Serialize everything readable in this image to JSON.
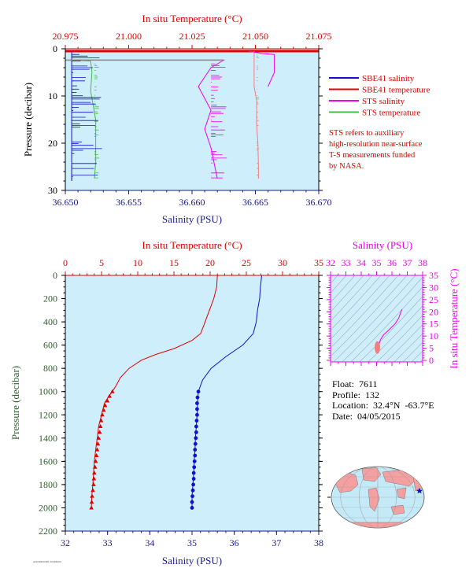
{
  "colors": {
    "red": "#e00000",
    "blue": "#1010cc",
    "magenta": "#ee00ee",
    "green": "#44bb44",
    "pink": "#f08080",
    "navy": "#1a1a8c",
    "darkgreen": "#2e5e2e",
    "panel": "#cdeefa",
    "land": "#f4a0a0",
    "ocean": "#c4eaf8"
  },
  "legend": {
    "items": [
      {
        "label": "SBE41 salinity",
        "color": "#1010cc"
      },
      {
        "label": "SBE41 temperature",
        "color": "#e00000"
      },
      {
        "label": "STS salinity",
        "color": "#ee00ee"
      },
      {
        "label": "STS temperature",
        "color": "#44bb44"
      }
    ],
    "note_lines": [
      "STS refers to auxiliary",
      "high-resolution near-surface",
      "T-S measurements funded",
      "by NASA."
    ]
  },
  "info": {
    "float": "Float:  7611",
    "profile": "Profile:  132",
    "location": "Location:  32.4°N  -63.7°E",
    "date": "Date:  04/05/2015"
  },
  "stamp": "A0000000000 00000000",
  "chart_data": [
    {
      "id": "near-surface",
      "type": "line",
      "top_axis_label": "In situ Temperature (°C)",
      "top_ticks": [
        "20.975",
        "21.000",
        "21.025",
        "21.050",
        "21.075"
      ],
      "top_range": [
        20.975,
        21.075
      ],
      "bottom_axis_label": "Salinity (PSU)",
      "bottom_ticks": [
        "36.650",
        "36.655",
        "36.660",
        "36.665",
        "36.670"
      ],
      "bottom_range": [
        36.65,
        36.67
      ],
      "ylabel": "Pressure (decibar)",
      "y_ticks": [
        "0",
        "10",
        "20",
        "30"
      ],
      "ylim": [
        0,
        30
      ],
      "series": [
        {
          "name": "SBE41 salinity",
          "color": "#1010cc",
          "x_axis": "bottom",
          "points": [
            [
              36.6505,
              0.5
            ],
            [
              36.6505,
              28
            ]
          ]
        },
        {
          "name": "SBE41 temperature",
          "color": "#e00000",
          "x_axis": "top",
          "points": [
            [
              20.975,
              0.5
            ],
            [
              21.075,
              0.5
            ]
          ]
        },
        {
          "name": "STS salinity",
          "color": "#ee00ee",
          "x_axis": "bottom",
          "points": [
            [
              36.6505,
              2.4
            ],
            [
              36.6625,
              2.4
            ],
            [
              36.6615,
              4
            ],
            [
              36.6605,
              8
            ],
            [
              36.6615,
              13
            ],
            [
              36.661,
              17
            ],
            [
              36.6615,
              21
            ],
            [
              36.6618,
              25
            ],
            [
              36.662,
              27.5
            ]
          ]
        },
        {
          "name": "STS temperature",
          "color": "#44bb44",
          "x_axis": "top",
          "points": [
            [
              20.975,
              2.4
            ],
            [
              20.985,
              2.6
            ],
            [
              20.9855,
              5
            ],
            [
              20.985,
              9
            ],
            [
              20.986,
              12
            ],
            [
              20.987,
              15
            ],
            [
              20.987,
              20
            ],
            [
              20.987,
              24
            ],
            [
              20.9865,
              27.5
            ]
          ]
        },
        {
          "name": "STS temperature (upper)",
          "color": "#f08080",
          "x_axis": "top",
          "points": [
            [
              21.0495,
              0.5
            ],
            [
              21.0495,
              8
            ],
            [
              21.0505,
              11
            ],
            [
              21.0505,
              16
            ],
            [
              21.051,
              20
            ],
            [
              21.0512,
              25
            ],
            [
              21.0512,
              27.5
            ]
          ]
        },
        {
          "name": "STS salinity (upper)",
          "color": "#ee00ee",
          "x_axis": "bottom",
          "points": [
            [
              36.6645,
              0.5
            ],
            [
              36.6655,
              1
            ],
            [
              36.6665,
              1.2
            ],
            [
              36.6665,
              5
            ],
            [
              36.666,
              8
            ]
          ]
        }
      ]
    },
    {
      "id": "full-profile",
      "type": "line",
      "top_axis_label": "In situ Temperature (°C)",
      "top_ticks": [
        "0",
        "5",
        "10",
        "15",
        "20",
        "25",
        "30",
        "35"
      ],
      "top_range": [
        0,
        35
      ],
      "bottom_axis_label": "Salinity (PSU)",
      "bottom_ticks": [
        "32",
        "33",
        "34",
        "35",
        "36",
        "37",
        "38"
      ],
      "bottom_range": [
        32,
        38
      ],
      "ylabel": "Pressure (decibar)",
      "y_ticks": [
        "0",
        "200",
        "400",
        "600",
        "800",
        "1000",
        "1200",
        "1400",
        "1600",
        "1800",
        "2000",
        "2200"
      ],
      "ylim": [
        0,
        2200
      ],
      "series": [
        {
          "name": "Temperature",
          "color": "#e00000",
          "x_axis": "top",
          "marker": "triangle",
          "points": [
            [
              21.0,
              0
            ],
            [
              20.9,
              100
            ],
            [
              20.5,
              200
            ],
            [
              19.9,
              300
            ],
            [
              19.3,
              400
            ],
            [
              18.7,
              500
            ],
            [
              17.5,
              560
            ],
            [
              15.0,
              630
            ],
            [
              12.5,
              680
            ],
            [
              10.5,
              730
            ],
            [
              8.8,
              800
            ],
            [
              7.6,
              880
            ],
            [
              7.0,
              950
            ],
            [
              6.5,
              1000
            ],
            [
              5.9,
              1050
            ],
            [
              5.4,
              1100
            ],
            [
              5.0,
              1200
            ],
            [
              4.6,
              1300
            ],
            [
              4.4,
              1400
            ],
            [
              4.2,
              1500
            ],
            [
              4.0,
              1600
            ],
            [
              3.9,
              1700
            ],
            [
              3.8,
              1800
            ],
            [
              3.65,
              1900
            ],
            [
              3.6,
              2000
            ]
          ],
          "marked": [
            [
              6.5,
              1000
            ],
            [
              6.1,
              1040
            ],
            [
              5.8,
              1080
            ],
            [
              5.5,
              1120
            ],
            [
              5.3,
              1160
            ],
            [
              5.1,
              1200
            ],
            [
              4.95,
              1250
            ],
            [
              4.85,
              1300
            ],
            [
              4.75,
              1350
            ],
            [
              4.6,
              1400
            ],
            [
              4.5,
              1450
            ],
            [
              4.4,
              1500
            ],
            [
              4.3,
              1550
            ],
            [
              4.2,
              1600
            ],
            [
              4.1,
              1650
            ],
            [
              4.0,
              1700
            ],
            [
              3.95,
              1750
            ],
            [
              3.9,
              1800
            ],
            [
              3.8,
              1850
            ],
            [
              3.7,
              1900
            ],
            [
              3.65,
              1950
            ],
            [
              3.6,
              2000
            ]
          ]
        },
        {
          "name": "Salinity",
          "color": "#1010cc",
          "x_axis": "bottom",
          "marker": "circle",
          "points": [
            [
              36.65,
              0
            ],
            [
              36.62,
              100
            ],
            [
              36.6,
              200
            ],
            [
              36.55,
              300
            ],
            [
              36.52,
              400
            ],
            [
              36.45,
              500
            ],
            [
              36.2,
              600
            ],
            [
              35.8,
              700
            ],
            [
              35.45,
              800
            ],
            [
              35.25,
              900
            ],
            [
              35.15,
              1000
            ],
            [
              35.13,
              1100
            ],
            [
              35.12,
              1200
            ],
            [
              35.1,
              1300
            ],
            [
              35.08,
              1400
            ],
            [
              35.07,
              1500
            ],
            [
              35.05,
              1600
            ],
            [
              35.04,
              1700
            ],
            [
              35.02,
              1800
            ],
            [
              35.0,
              1900
            ],
            [
              35.0,
              2000
            ]
          ],
          "marked": [
            [
              35.15,
              1000
            ],
            [
              35.13,
              1050
            ],
            [
              35.12,
              1100
            ],
            [
              35.12,
              1150
            ],
            [
              35.12,
              1200
            ],
            [
              35.11,
              1250
            ],
            [
              35.1,
              1300
            ],
            [
              35.1,
              1350
            ],
            [
              35.09,
              1400
            ],
            [
              35.08,
              1450
            ],
            [
              35.07,
              1500
            ],
            [
              35.07,
              1550
            ],
            [
              35.06,
              1600
            ],
            [
              35.05,
              1650
            ],
            [
              35.04,
              1700
            ],
            [
              35.04,
              1750
            ],
            [
              35.03,
              1800
            ],
            [
              35.02,
              1850
            ],
            [
              35.01,
              1900
            ],
            [
              35.0,
              1950
            ],
            [
              35.0,
              2000
            ]
          ]
        }
      ]
    },
    {
      "id": "ts-diagram",
      "type": "scatter",
      "top_axis_label": "Salinity (PSU)",
      "top_ticks": [
        "32",
        "33",
        "34",
        "35",
        "36",
        "37",
        "38"
      ],
      "top_range": [
        32,
        38
      ],
      "right_axis_label": "In situ Temperature (°C)",
      "right_ticks": [
        "0",
        "5",
        "10",
        "15",
        "20",
        "25",
        "30",
        "35"
      ],
      "right_range": [
        0,
        35
      ],
      "series": [
        {
          "name": "T-S",
          "color": "#f08080",
          "points": [
            [
              35.0,
              3.6
            ],
            [
              35.05,
              4.0
            ],
            [
              35.1,
              4.6
            ],
            [
              35.12,
              5.2
            ],
            [
              35.15,
              6.5
            ],
            [
              35.25,
              8.5
            ],
            [
              35.45,
              10.5
            ],
            [
              35.8,
              12.5
            ],
            [
              36.2,
              15
            ],
            [
              36.45,
              17.5
            ],
            [
              36.55,
              19.3
            ],
            [
              36.65,
              21
            ]
          ]
        }
      ]
    }
  ]
}
